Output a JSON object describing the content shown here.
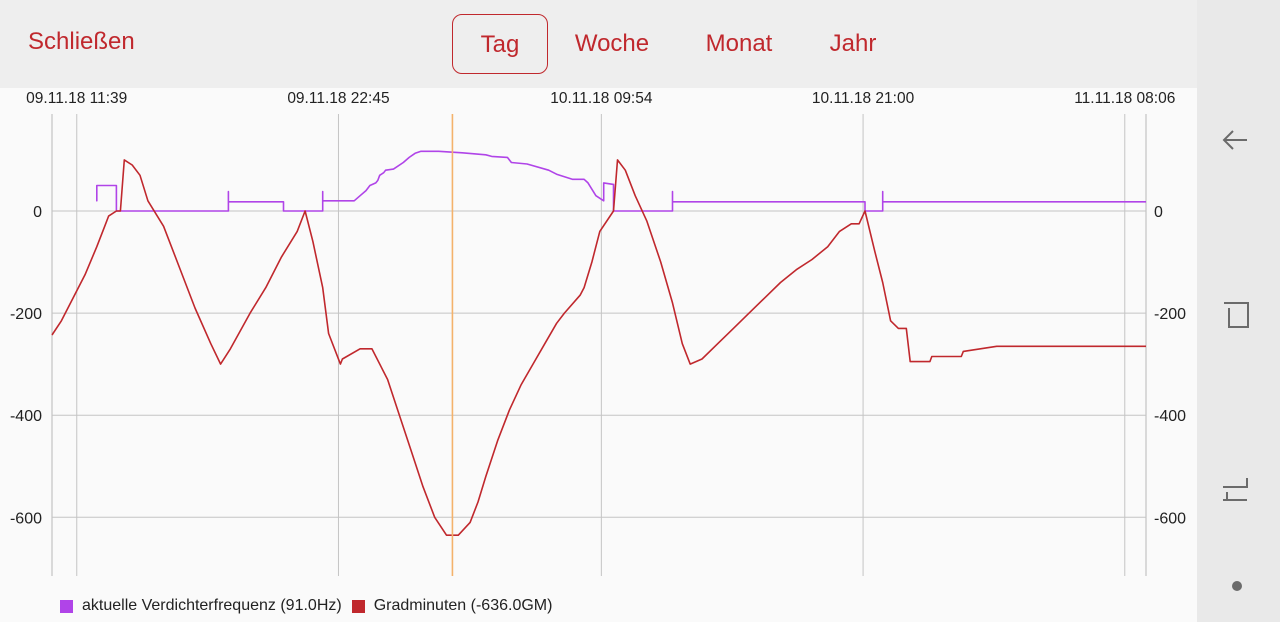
{
  "header": {
    "close_label": "Schließen",
    "tabs": [
      {
        "label": "Tag",
        "active": true
      },
      {
        "label": "Woche",
        "active": false
      },
      {
        "label": "Monat",
        "active": false
      },
      {
        "label": "Jahr",
        "active": false
      }
    ]
  },
  "chart_data": {
    "type": "line",
    "x_tick_labels": [
      "09.11.18 11:39",
      "09.11.18 22:45",
      "10.11.18 09:54",
      "10.11.18 21:00",
      "11.11.18 08:06"
    ],
    "x_range": [
      "09.11.18 10:36",
      "11.11.18 09:00"
    ],
    "ylim": [
      -715,
      190
    ],
    "y_ticks": [
      0,
      -200,
      -400,
      -600
    ],
    "y_tick_labels": [
      "0",
      "-200",
      "-400",
      "-600"
    ],
    "grid": true,
    "cursor_time": "10.11.18 03:35",
    "legend_position": "bottom-left",
    "series": [
      {
        "name": "aktuelle Verdichterfrequenz",
        "legend_label": "aktuelle Verdichterfrequenz (91.0Hz)",
        "color": "#b044e8",
        "points": [
          [
            "09.11.18 12:30",
            50
          ],
          [
            "09.11.18 12:30",
            20
          ],
          [
            "09.11.18 12:30",
            50
          ],
          [
            "09.11.18 13:20",
            50
          ],
          [
            "09.11.18 13:20",
            0
          ],
          [
            "09.11.18 18:05",
            0
          ],
          [
            "09.11.18 18:05",
            38
          ],
          [
            "09.11.18 18:05",
            18
          ],
          [
            "09.11.18 20:25",
            18
          ],
          [
            "09.11.18 20:25",
            0
          ],
          [
            "09.11.18 22:05",
            0
          ],
          [
            "09.11.18 22:05",
            38
          ],
          [
            "09.11.18 22:05",
            20
          ],
          [
            "09.11.18 23:25",
            20
          ],
          [
            "09.11.18 23:40",
            30
          ],
          [
            "09.11.18 23:55",
            40
          ],
          [
            "09.11.18 00:05",
            50
          ],
          [
            "10.11.18 00:20",
            55
          ],
          [
            "10.11.18 00:25",
            60
          ],
          [
            "10.11.18 00:30",
            70
          ],
          [
            "10.11.18 00:40",
            75
          ],
          [
            "10.11.18 00:45",
            80
          ],
          [
            "10.11.18 01:05",
            82
          ],
          [
            "10.11.18 01:30",
            95
          ],
          [
            "10.11.18 01:45",
            105
          ],
          [
            "10.11.18 02:00",
            113
          ],
          [
            "10.11.18 02:15",
            117
          ],
          [
            "10.11.18 03:00",
            117
          ],
          [
            "10.11.18 04:00",
            114
          ],
          [
            "10.11.18 05:00",
            110
          ],
          [
            "10.11.18 05:15",
            107
          ],
          [
            "10.11.18 05:55",
            105
          ],
          [
            "10.11.18 06:05",
            95
          ],
          [
            "10.11.18 06:45",
            92
          ],
          [
            "10.11.18 07:40",
            80
          ],
          [
            "10.11.18 08:00",
            72
          ],
          [
            "10.11.18 08:40",
            62
          ],
          [
            "10.11.18 09:10",
            62
          ],
          [
            "10.11.18 09:20",
            55
          ],
          [
            "10.11.18 09:40",
            30
          ],
          [
            "10.11.18 10:00",
            20
          ],
          [
            "10.11.18 10:00",
            55
          ],
          [
            "10.11.18 10:25",
            52
          ],
          [
            "10.11.18 10:25",
            0
          ],
          [
            "10.11.18 11:30",
            0
          ],
          [
            "10.11.18 12:55",
            0
          ],
          [
            "10.11.18 12:55",
            38
          ],
          [
            "10.11.18 12:55",
            18
          ],
          [
            "10.11.18 21:05",
            18
          ],
          [
            "10.11.18 21:05",
            0
          ],
          [
            "10.11.18 21:50",
            0
          ],
          [
            "10.11.18 21:50",
            38
          ],
          [
            "10.11.18 21:50",
            18
          ],
          [
            "11.11.18 09:00",
            18
          ]
        ]
      },
      {
        "name": "Gradminuten",
        "legend_label": "Gradminuten (-636.0GM)",
        "color": "#c0282d",
        "points": [
          [
            "09.11.18 10:36",
            -243
          ],
          [
            "09.11.18 11:00",
            -215
          ],
          [
            "09.11.18 11:30",
            -170
          ],
          [
            "09.11.18 12:00",
            -125
          ],
          [
            "09.11.18 12:30",
            -70
          ],
          [
            "09.11.18 12:50",
            -30
          ],
          [
            "09.11.18 13:00",
            -10
          ],
          [
            "09.11.18 13:20",
            0
          ],
          [
            "09.11.18 13:30",
            0
          ],
          [
            "09.11.18 13:40",
            100
          ],
          [
            "09.11.18 14:00",
            90
          ],
          [
            "09.11.18 14:20",
            70
          ],
          [
            "09.11.18 14:40",
            20
          ],
          [
            "09.11.18 15:20",
            -30
          ],
          [
            "09.11.18 16:00",
            -110
          ],
          [
            "09.11.18 16:40",
            -190
          ],
          [
            "09.11.18 17:20",
            -260
          ],
          [
            "09.11.18 17:45",
            -300
          ],
          [
            "09.11.18 18:10",
            -270
          ],
          [
            "09.11.18 19:00",
            -200
          ],
          [
            "09.11.18 19:40",
            -150
          ],
          [
            "09.11.18 20:20",
            -90
          ],
          [
            "09.11.18 21:00",
            -40
          ],
          [
            "09.11.18 21:20",
            0
          ],
          [
            "09.11.18 21:40",
            -60
          ],
          [
            "09.11.18 22:05",
            -150
          ],
          [
            "09.11.18 22:20",
            -240
          ],
          [
            "09.11.18 22:50",
            -300
          ],
          [
            "09.11.18 22:55",
            -290
          ],
          [
            "09.11.18 23:40",
            -270
          ],
          [
            "10.11.18 00:10",
            -270
          ],
          [
            "10.11.18 00:50",
            -330
          ],
          [
            "10.11.18 01:20",
            -400
          ],
          [
            "10.11.18 01:50",
            -470
          ],
          [
            "10.11.18 02:20",
            -540
          ],
          [
            "10.11.18 02:50",
            -600
          ],
          [
            "10.11.18 03:20",
            -635
          ],
          [
            "10.11.18 03:50",
            -635
          ],
          [
            "10.11.18 04:20",
            -610
          ],
          [
            "10.11.18 04:40",
            -570
          ],
          [
            "10.11.18 05:00",
            -520
          ],
          [
            "10.11.18 05:30",
            -450
          ],
          [
            "10.11.18 06:00",
            -390
          ],
          [
            "10.11.18 06:30",
            -340
          ],
          [
            "10.11.18 07:00",
            -300
          ],
          [
            "10.11.18 07:30",
            -260
          ],
          [
            "10.11.18 08:00",
            -220
          ],
          [
            "10.11.18 08:20",
            -200
          ],
          [
            "10.11.18 09:00",
            -165
          ],
          [
            "10.11.18 09:10",
            -150
          ],
          [
            "10.11.18 09:30",
            -100
          ],
          [
            "10.11.18 09:50",
            -40
          ],
          [
            "10.11.18 10:25",
            0
          ],
          [
            "10.11.18 10:35",
            100
          ],
          [
            "10.11.18 10:55",
            80
          ],
          [
            "10.11.18 11:20",
            30
          ],
          [
            "10.11.18 11:50",
            -20
          ],
          [
            "10.11.18 12:25",
            -100
          ],
          [
            "10.11.18 12:55",
            -180
          ],
          [
            "10.11.18 13:20",
            -260
          ],
          [
            "10.11.18 13:40",
            -300
          ],
          [
            "10.11.18 14:10",
            -290
          ],
          [
            "10.11.18 14:50",
            -260
          ],
          [
            "10.11.18 15:30",
            -230
          ],
          [
            "10.11.18 16:10",
            -200
          ],
          [
            "10.11.18 16:50",
            -170
          ],
          [
            "10.11.18 17:30",
            -140
          ],
          [
            "10.11.18 18:10",
            -115
          ],
          [
            "10.11.18 18:50",
            -95
          ],
          [
            "10.11.18 19:30",
            -70
          ],
          [
            "10.11.18 20:00",
            -40
          ],
          [
            "10.11.18 20:30",
            -25
          ],
          [
            "10.11.18 20:50",
            -25
          ],
          [
            "10.11.18 21:05",
            0
          ],
          [
            "10.11.18 21:30",
            -80
          ],
          [
            "10.11.18 21:50",
            -140
          ],
          [
            "10.11.18 22:10",
            -215
          ],
          [
            "10.11.18 22:30",
            -230
          ],
          [
            "10.11.18 22:50",
            -230
          ],
          [
            "10.11.18 23:00",
            -295
          ],
          [
            "10.11.18 23:50",
            -295
          ],
          [
            "10.11.18 23:55",
            -285
          ],
          [
            "11.11.18 01:10",
            -285
          ],
          [
            "11.11.18 01:15",
            -275
          ],
          [
            "11.11.18 02:40",
            -265
          ],
          [
            "11.11.18 09:00",
            -265
          ]
        ]
      }
    ]
  },
  "nav": {
    "icons": [
      "back-icon",
      "recents-icon",
      "home-icon",
      "dot-icon"
    ]
  }
}
